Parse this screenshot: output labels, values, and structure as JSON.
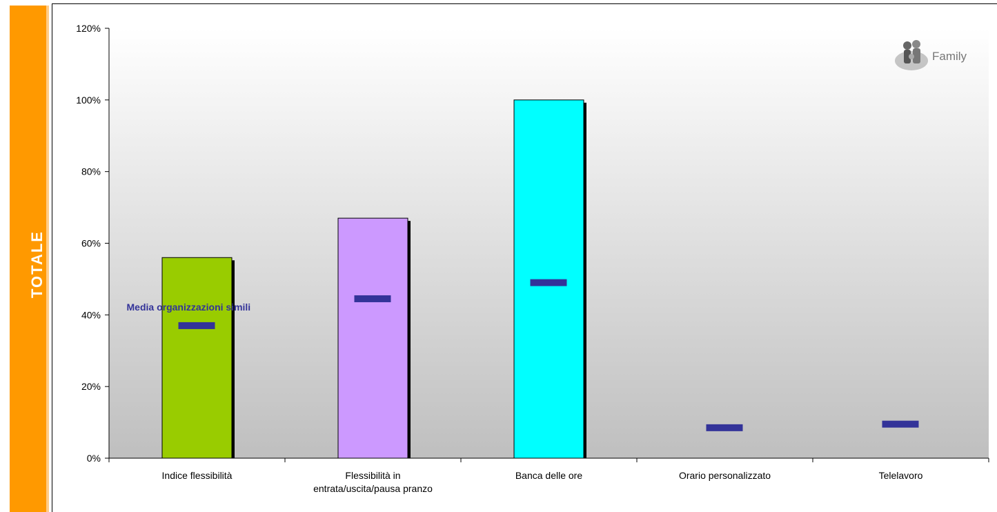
{
  "side_label": "TOTALE",
  "logo": {
    "text": "Family",
    "icon": "family-figures-icon"
  },
  "chart_data": {
    "type": "bar",
    "categories": [
      [
        "Indice flessibilità"
      ],
      [
        "Flessibilità in",
        "entrata/uscita/pausa pranzo"
      ],
      [
        "Banca delle ore"
      ],
      [
        "Orario personalizzato"
      ],
      [
        "Telelavoro"
      ]
    ],
    "series": [
      {
        "values": [
          56,
          67,
          100,
          0,
          0
        ],
        "colors": [
          "#99cc00",
          "#cc99ff",
          "#00ffff",
          "#cccccc",
          "#cccccc"
        ]
      },
      {
        "name": "Media organizzazioni simili",
        "values": [
          37,
          44.5,
          49,
          8.5,
          9.5
        ],
        "color": "#333399",
        "marker": "dash"
      }
    ],
    "ylim": [
      0,
      120
    ],
    "yticks": [
      0,
      20,
      40,
      60,
      80,
      100,
      120
    ],
    "ytick_labels": [
      "0%",
      "20%",
      "40%",
      "60%",
      "80%",
      "100%",
      "120%"
    ],
    "annotation": "Media organizzazioni simili",
    "background_gradient": [
      "#ffffff",
      "#bfbfbf"
    ],
    "grid": false,
    "legend": "none"
  }
}
